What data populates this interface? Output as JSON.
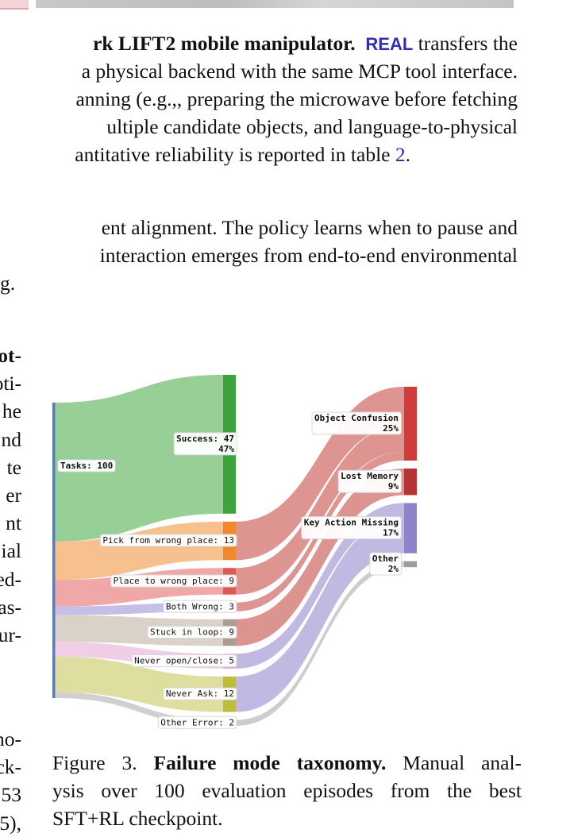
{
  "paragraph_1": {
    "bold": "rk LIFT2 mobile manipulator.",
    "name": "REAL",
    "first_line_rest": "transfers the",
    "lines": [
      "a physical backend with the same MCP tool interface.",
      "anning (e.g.,, preparing the microwave before fetching",
      "ultiple candidate objects, and language-to-physical"
    ],
    "last_line": "antitative reliability is reported in table",
    "ref": "2",
    "end": "."
  },
  "paragraph_2": {
    "lines": [
      "ent alignment. The policy learns when to pause and",
      "interaction emerges from end-to-end environmental",
      "g."
    ]
  },
  "left_column": {
    "lines_1": [
      "ot-",
      "oti-",
      "he",
      "nd",
      "te",
      "er",
      "nt",
      "ial",
      "ed-",
      "as-",
      "ur-"
    ],
    "lines_2": [
      "no-",
      "ck-",
      "53",
      "5),"
    ]
  },
  "figure": {
    "chart": {
      "type": "sankey",
      "source": {
        "label": "Tasks: 100",
        "value": 100,
        "color": "#5b7db5"
      },
      "outcomes": [
        {
          "label": "Success: 47",
          "share_label": "47%",
          "value": 47,
          "color": "#3ca43c",
          "flow_color": "#91cc91"
        },
        {
          "label": "Pick from wrong place: 13",
          "value": 13,
          "color": "#f0892e",
          "flow_color": "#f5be88",
          "flows_to": 0
        },
        {
          "label": "Place to wrong place: 9",
          "value": 9,
          "color": "#e05757",
          "flow_color": "#eea2a2",
          "flows_to": 0
        },
        {
          "label": "Both Wrong: 3",
          "value": 3,
          "color": "#9a8ed2",
          "flow_color": "#c3bae4",
          "flows_to": 0
        },
        {
          "label": "Stuck in loop: 9",
          "value": 9,
          "color": "#ab9e90",
          "flow_color": "#d8cfc6",
          "flows_to": 1
        },
        {
          "label": "Never open/close: 5",
          "value": 5,
          "color": "#e7a8d6",
          "flow_color": "#efcbe4",
          "flows_to": 2
        },
        {
          "label": "Never Ask: 12",
          "value": 12,
          "color": "#bdbd3c",
          "flow_color": "#dcdc9c",
          "flows_to": 2
        },
        {
          "label": "Other Error: 2",
          "value": 2,
          "color": "#b0b0b0",
          "flow_color": "#cdcdcd",
          "flows_to": 3
        }
      ],
      "categories": [
        {
          "label": "Object Confusion",
          "share_label": "25%",
          "value": 25,
          "color": "#d13b3b",
          "flow_color": "#dc8f8b"
        },
        {
          "label": "Lost Memory",
          "share_label": "9%",
          "value": 9,
          "color": "#b83333",
          "flow_color": "#d98e8a"
        },
        {
          "label": "Key Action Missing",
          "share_label": "17%",
          "value": 17,
          "color": "#9083c9",
          "flow_color": "#beb5df"
        },
        {
          "label": "Other",
          "share_label": "2%",
          "value": 2,
          "color": "#9c9c9c",
          "flow_color": "#cacaca"
        }
      ]
    },
    "caption": {
      "label": "Figure 3.",
      "title": "Failure mode taxonomy.",
      "first_line_rest": "Manual anal-",
      "lines": [
        "ysis over 100 evaluation episodes from the best",
        "SFT+RL checkpoint."
      ]
    }
  }
}
